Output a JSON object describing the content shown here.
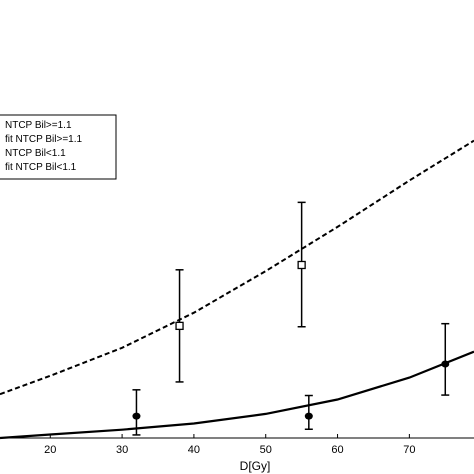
{
  "chart_data": {
    "type": "scatter",
    "xlabel": "D[Gy]",
    "ylabel": "",
    "xlim": [
      13,
      79
    ],
    "ylim": [
      0,
      1
    ],
    "x_ticks": [
      20,
      30,
      40,
      50,
      60,
      70
    ],
    "grid": false,
    "legend_position": "left",
    "legend": [
      "NTCP Bil>=1.1",
      "fit NTCP Bil>=1.1",
      "NTCP Bil<1.1",
      "fit NTCP Bil<1.1"
    ],
    "series": [
      {
        "name": "NTCP Bil>=1.1",
        "kind": "points",
        "marker": "open-square",
        "points": [
          {
            "x": 38,
            "y": 0.256,
            "err_low": 0.128,
            "err_high": 0.384
          },
          {
            "x": 55,
            "y": 0.395,
            "err_low": 0.254,
            "err_high": 0.538
          }
        ]
      },
      {
        "name": "fit NTCP Bil>=1.1",
        "kind": "curve",
        "line": "dashed",
        "points": [
          {
            "x": 13,
            "y": 0.1
          },
          {
            "x": 20,
            "y": 0.142
          },
          {
            "x": 30,
            "y": 0.206
          },
          {
            "x": 40,
            "y": 0.286
          },
          {
            "x": 50,
            "y": 0.381
          },
          {
            "x": 60,
            "y": 0.482
          },
          {
            "x": 70,
            "y": 0.588
          },
          {
            "x": 79,
            "y": 0.679
          }
        ]
      },
      {
        "name": "NTCP Bil<1.1",
        "kind": "points",
        "marker": "filled-circle",
        "points": [
          {
            "x": 32,
            "y": 0.05,
            "err_low": 0.007,
            "err_high": 0.11
          },
          {
            "x": 56,
            "y": 0.05,
            "err_low": 0.02,
            "err_high": 0.097
          },
          {
            "x": 75,
            "y": 0.169,
            "err_low": 0.098,
            "err_high": 0.261
          }
        ]
      },
      {
        "name": "fit NTCP Bil<1.1",
        "kind": "curve",
        "line": "solid",
        "points": [
          {
            "x": 13,
            "y": 0.0
          },
          {
            "x": 20,
            "y": 0.008
          },
          {
            "x": 30,
            "y": 0.019
          },
          {
            "x": 40,
            "y": 0.033
          },
          {
            "x": 50,
            "y": 0.055
          },
          {
            "x": 60,
            "y": 0.088
          },
          {
            "x": 70,
            "y": 0.138
          },
          {
            "x": 79,
            "y": 0.197
          }
        ]
      }
    ]
  }
}
